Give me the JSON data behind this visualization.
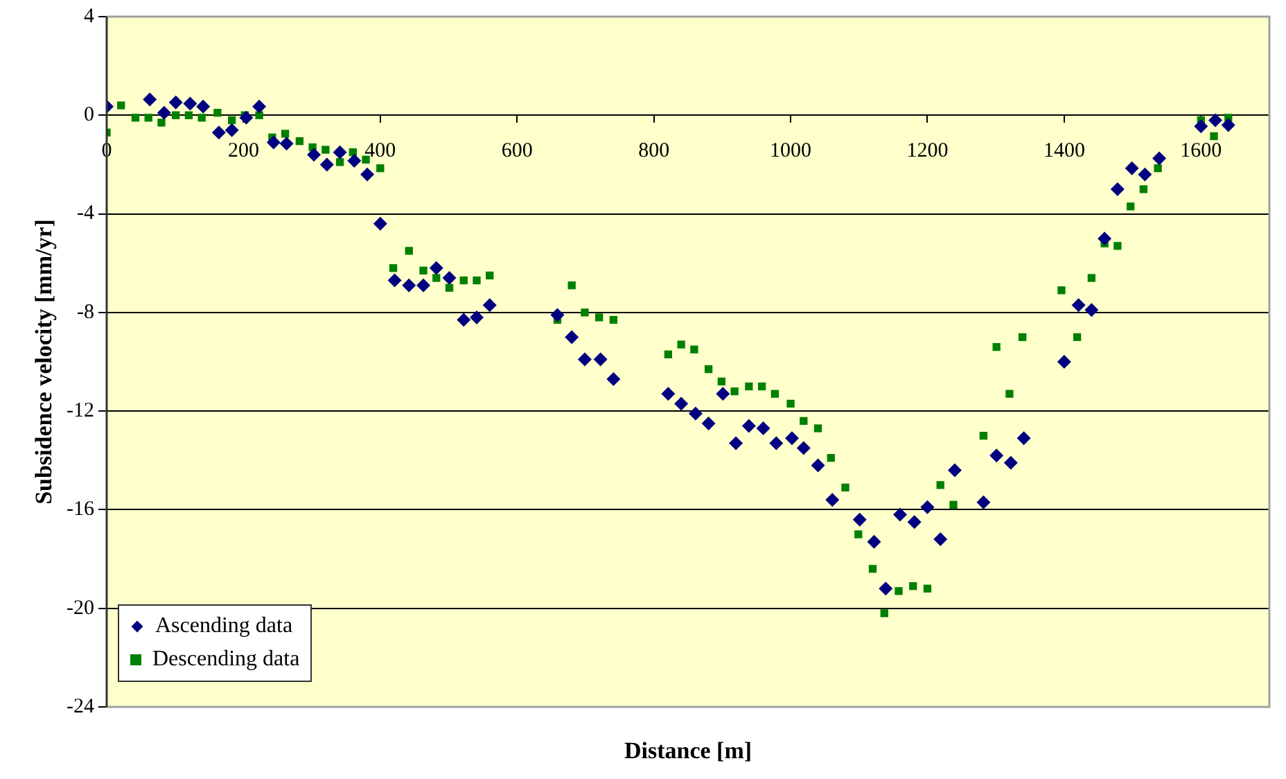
{
  "chart_data": {
    "type": "scatter",
    "xlabel": "Distance [m]",
    "ylabel": "Subsidence velocity [mm/yr]",
    "xlim": [
      0,
      1700
    ],
    "xticks": [
      0,
      200,
      400,
      600,
      800,
      1000,
      1200,
      1400,
      1600
    ],
    "ylim": [
      -24,
      4
    ],
    "yticks": [
      -24,
      -20,
      -16,
      -12,
      -8,
      -4,
      0,
      4
    ],
    "grid": "y",
    "legend": "bottom left",
    "series": [
      {
        "name": "Ascending data",
        "color": "#000080",
        "marker": "diamond",
        "x": [
          0,
          63,
          84,
          101,
          122,
          141,
          164,
          183,
          204,
          223,
          244,
          263,
          303,
          322,
          341,
          362,
          381,
          400,
          421,
          442,
          463,
          482,
          501,
          522,
          541,
          560,
          659,
          680,
          699,
          722,
          741,
          821,
          840,
          861,
          880,
          901,
          920,
          939,
          960,
          979,
          1002,
          1019,
          1040,
          1061,
          1101,
          1122,
          1139,
          1160,
          1181,
          1200,
          1219,
          1240,
          1282,
          1301,
          1322,
          1341,
          1400,
          1421,
          1440,
          1459,
          1478,
          1499,
          1518,
          1539,
          1600,
          1621,
          1640
        ],
        "values": [
          0.35,
          0.64,
          0.1,
          0.52,
          0.47,
          0.35,
          -0.7,
          -0.6,
          -0.1,
          0.35,
          -1.1,
          -1.15,
          -1.6,
          -2.0,
          -1.5,
          -1.85,
          -2.4,
          -4.4,
          -6.7,
          -6.9,
          -6.9,
          -6.2,
          -6.6,
          -8.3,
          -8.2,
          -7.7,
          -8.1,
          -9.0,
          -9.9,
          -9.9,
          -10.7,
          -11.3,
          -11.7,
          -12.1,
          -12.5,
          -11.3,
          -13.3,
          -12.6,
          -12.7,
          -13.3,
          -13.1,
          -13.5,
          -14.2,
          -15.6,
          -16.4,
          -17.3,
          -19.2,
          -16.2,
          -16.5,
          -15.9,
          -17.2,
          -14.4,
          -15.7,
          -13.8,
          -14.1,
          -13.1,
          -10.0,
          -7.7,
          -7.9,
          -5.0,
          -3.0,
          -2.15,
          -2.4,
          -1.75,
          -0.45,
          -0.2,
          -0.4
        ]
      },
      {
        "name": "Descending data",
        "color": "#008000",
        "marker": "square",
        "x": [
          0,
          21,
          42,
          61,
          80,
          101,
          120,
          139,
          162,
          183,
          202,
          223,
          242,
          261,
          282,
          301,
          320,
          341,
          360,
          379,
          400,
          419,
          442,
          463,
          482,
          501,
          522,
          541,
          560,
          659,
          680,
          699,
          720,
          741,
          821,
          840,
          859,
          880,
          899,
          918,
          939,
          958,
          977,
          1000,
          1019,
          1040,
          1059,
          1080,
          1099,
          1120,
          1137,
          1158,
          1179,
          1200,
          1219,
          1238,
          1282,
          1301,
          1320,
          1339,
          1396,
          1419,
          1440,
          1459,
          1478,
          1497,
          1516,
          1537,
          1600,
          1619,
          1640
        ],
        "values": [
          -0.7,
          0.4,
          -0.1,
          -0.1,
          -0.3,
          0,
          0,
          -0.1,
          0.1,
          -0.2,
          0,
          0,
          -0.9,
          -0.75,
          -1.05,
          -1.3,
          -1.4,
          -1.9,
          -1.5,
          -1.8,
          -2.15,
          -6.2,
          -5.5,
          -6.3,
          -6.6,
          -7.0,
          -6.7,
          -6.7,
          -6.5,
          -8.3,
          -6.9,
          -8.0,
          -8.2,
          -8.3,
          -9.7,
          -9.3,
          -9.5,
          -10.3,
          -10.8,
          -11.2,
          -11.0,
          -11.0,
          -11.3,
          -11.7,
          -12.4,
          -12.7,
          -13.9,
          -15.1,
          -17.0,
          -18.4,
          -20.2,
          -19.3,
          -19.1,
          -19.2,
          -15.0,
          -15.8,
          -13.0,
          -9.4,
          -11.3,
          -9.0,
          -7.1,
          -9.0,
          -6.6,
          -5.2,
          -5.3,
          -3.7,
          -3.0,
          -2.15,
          -0.2,
          -0.85,
          -0.1
        ]
      }
    ]
  }
}
